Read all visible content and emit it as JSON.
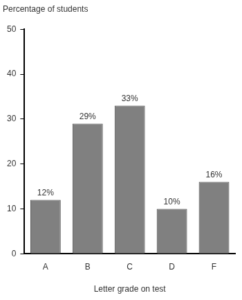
{
  "chart_data": {
    "type": "bar",
    "ylabel": "Percentage of students",
    "xlabel": "Letter grade on test",
    "categories": [
      "A",
      "B",
      "C",
      "D",
      "F"
    ],
    "values": [
      12,
      29,
      33,
      10,
      16
    ],
    "value_labels": [
      "12%",
      "29%",
      "33%",
      "10%",
      "16%"
    ],
    "data_labels": true,
    "color": "#808080",
    "ylim": [
      0,
      50
    ],
    "yticks": [
      0,
      10,
      20,
      30,
      40,
      50
    ],
    "grid": false
  }
}
